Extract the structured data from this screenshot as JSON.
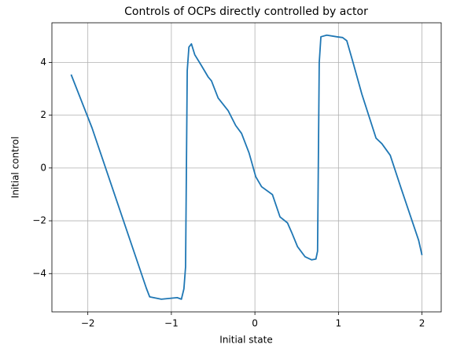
{
  "chart_data": {
    "type": "line",
    "title": "Controls of OCPs directly controlled by actor",
    "x_label": "Initial state",
    "y_label": "Initial control",
    "x": [
      -2.2,
      -1.95,
      -1.3,
      -1.26,
      -1.12,
      -0.93,
      -0.88,
      -0.85,
      -0.83,
      -0.81,
      -0.79,
      -0.76,
      -0.72,
      -0.65,
      -0.56,
      -0.52,
      -0.44,
      -0.32,
      -0.23,
      -0.16,
      -0.07,
      0.01,
      0.08,
      0.21,
      0.3,
      0.39,
      0.44,
      0.51,
      0.6,
      0.68,
      0.73,
      0.75,
      0.77,
      0.79,
      0.86,
      0.98,
      1.05,
      1.1,
      1.17,
      1.28,
      1.45,
      1.52,
      1.62,
      1.75,
      1.96,
      2.0
    ],
    "series": [
      {
        "name": "control",
        "color": "#1f77b4",
        "values": [
          3.54,
          1.52,
          -4.55,
          -4.88,
          -4.97,
          -4.91,
          -4.97,
          -4.58,
          -3.75,
          3.69,
          4.58,
          4.7,
          4.29,
          3.93,
          3.45,
          3.3,
          2.65,
          2.17,
          1.61,
          1.31,
          0.57,
          -0.33,
          -0.71,
          -1.01,
          -1.85,
          -2.08,
          -2.44,
          -2.98,
          -3.36,
          -3.48,
          -3.45,
          -3.15,
          3.99,
          4.97,
          5.03,
          4.97,
          4.94,
          4.82,
          4.05,
          2.8,
          1.13,
          0.92,
          0.48,
          -0.77,
          -2.74,
          -3.3
        ]
      }
    ],
    "xlim": [
      -2.43,
      2.23
    ],
    "ylim": [
      -5.45,
      5.5
    ],
    "xticks": [
      {
        "value": -2,
        "label": "−2"
      },
      {
        "value": -1,
        "label": "−1"
      },
      0,
      1,
      2
    ],
    "yticks": [
      {
        "value": -4,
        "label": "−4"
      },
      {
        "value": -2,
        "label": "−2"
      },
      0,
      2,
      4
    ],
    "grid": true
  }
}
